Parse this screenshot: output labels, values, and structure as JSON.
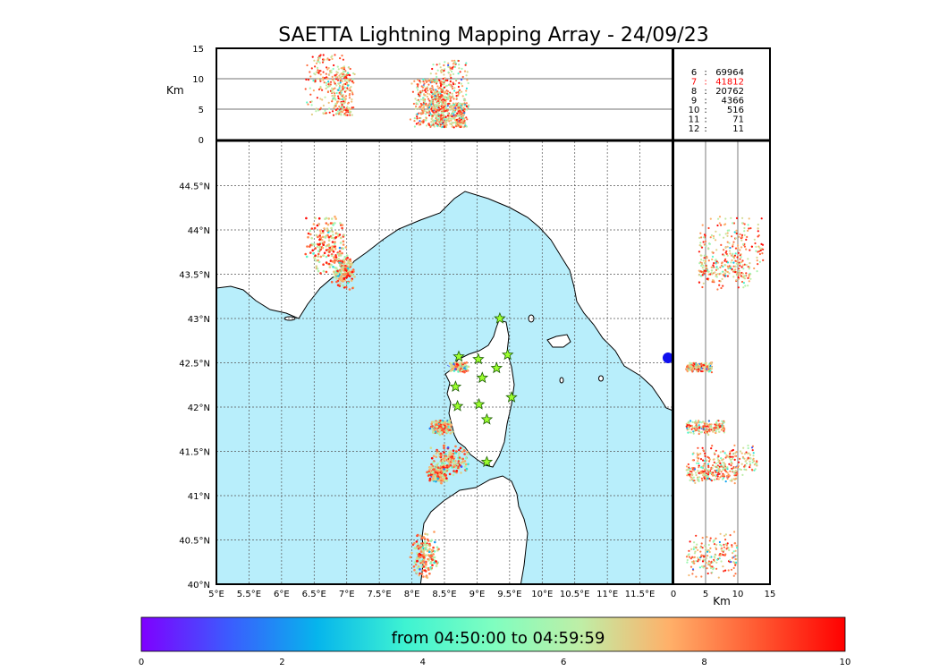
{
  "title": "SAETTA Lightning Mapping Array - 24/09/23",
  "colors": {
    "sea": "#b8eefb",
    "land": "#ffffff",
    "coast": "#000000",
    "rivers": "#3a3aff",
    "borders": "#555555",
    "grid": "#555555",
    "stations": "#9cff2e",
    "station_outline": "#1a5c00",
    "highlight_count": "#ff0000"
  },
  "chart_data": {
    "type": "scatter",
    "map": {
      "lon_range": [
        5,
        12
      ],
      "lat_range": [
        40,
        45
      ],
      "x_tick_labels": [
        "5°E",
        "5.5°E",
        "6°E",
        "6.5°E",
        "7°E",
        "7.5°E",
        "8°E",
        "8.5°E",
        "9°E",
        "9.5°E",
        "10°E",
        "10.5°E",
        "11°E",
        "11.5°E"
      ],
      "x_ticks": [
        5,
        5.5,
        6,
        6.5,
        7,
        7.5,
        8,
        8.5,
        9,
        9.5,
        10,
        10.5,
        11,
        11.5
      ],
      "y_tick_labels": [
        "40°N",
        "40.5°N",
        "41°N",
        "41.5°N",
        "42°N",
        "42.5°N",
        "43°N",
        "43.5°N",
        "44°N",
        "44.5°N"
      ],
      "y_ticks": [
        40,
        40.5,
        41,
        41.5,
        42,
        42.5,
        43,
        43.5,
        44,
        44.5
      ],
      "grid": "dotted"
    },
    "altitude_vs_lon": {
      "ylabel": "Km",
      "ylim": [
        0,
        15
      ],
      "y_tick_labels": [
        "0",
        "5",
        "10",
        "15"
      ],
      "y_ticks": [
        0,
        5,
        10,
        15
      ]
    },
    "altitude_vs_lat": {
      "xlabel": "Km",
      "xlim": [
        0,
        15
      ],
      "x_tick_labels": [
        "0",
        "5",
        "10",
        "15"
      ],
      "x_ticks": [
        0,
        5,
        10,
        15
      ]
    },
    "station_counts": [
      {
        "stations": "6",
        "count": "69964",
        "highlight": false
      },
      {
        "stations": "7",
        "count": "41812",
        "highlight": true
      },
      {
        "stations": "8",
        "count": "20762",
        "highlight": false
      },
      {
        "stations": "9",
        "count": "4366",
        "highlight": false
      },
      {
        "stations": "10",
        "count": "516",
        "highlight": false
      },
      {
        "stations": "11",
        "count": "71",
        "highlight": false
      },
      {
        "stations": "12",
        "count": "11",
        "highlight": false
      }
    ],
    "stations": [
      [
        9.35,
        43.0
      ],
      [
        8.72,
        42.57
      ],
      [
        9.02,
        42.54
      ],
      [
        9.47,
        42.59
      ],
      [
        9.3,
        42.44
      ],
      [
        9.08,
        42.33
      ],
      [
        8.67,
        42.23
      ],
      [
        9.53,
        42.11
      ],
      [
        8.7,
        42.01
      ],
      [
        9.03,
        42.03
      ],
      [
        9.15,
        41.86
      ],
      [
        9.15,
        41.38
      ]
    ],
    "clusters": [
      {
        "lon": [
          6.4,
          7.0
        ],
        "lat": [
          43.55,
          44.15
        ],
        "alt": [
          4,
          14
        ]
      },
      {
        "lon": [
          6.8,
          7.1
        ],
        "lat": [
          43.35,
          43.7
        ],
        "alt": [
          4,
          12
        ]
      },
      {
        "lon": [
          8.3,
          8.85
        ],
        "lat": [
          41.25,
          41.55
        ],
        "alt": [
          3,
          13
        ]
      },
      {
        "lon": [
          8.25,
          8.55
        ],
        "lat": [
          41.15,
          41.35
        ],
        "alt": [
          2,
          10
        ]
      },
      {
        "lon": [
          8.3,
          8.6
        ],
        "lat": [
          41.7,
          41.85
        ],
        "alt": [
          2,
          8
        ]
      },
      {
        "lon": [
          8.0,
          8.4
        ],
        "lat": [
          40.1,
          40.55
        ],
        "alt": [
          2,
          10
        ]
      },
      {
        "lon": [
          8.6,
          8.85
        ],
        "lat": [
          42.4,
          42.5
        ],
        "alt": [
          2,
          6
        ]
      }
    ],
    "colorbar": {
      "label": "from 04:50:00 to 04:59:59",
      "range": [
        0,
        10
      ],
      "tick_labels": [
        "0",
        "2",
        "4",
        "6",
        "8",
        "10"
      ],
      "ticks": [
        0,
        2,
        4,
        6,
        8,
        10
      ],
      "colormap": [
        "#7f00ff",
        "#3b5cfe",
        "#06b5ec",
        "#3ef3d2",
        "#7ffec0",
        "#bfeea6",
        "#ffb069",
        "#ff5a32",
        "#ff0000"
      ]
    }
  }
}
